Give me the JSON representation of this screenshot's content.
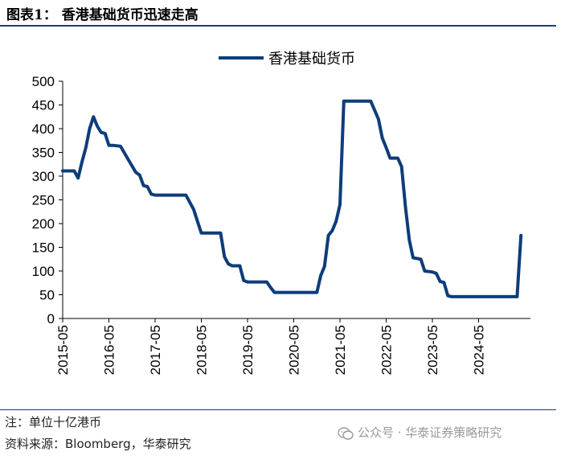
{
  "header": {
    "title": "图表1： 香港基础货币迅速走高"
  },
  "footer": {
    "note": "注：单位十亿港币",
    "source": "资料来源：Bloomberg，华泰研究",
    "watermark": "公众号 · 华泰证券策略研究"
  },
  "chart_data": {
    "type": "line",
    "title": "",
    "xlabel": "",
    "ylabel": "",
    "ylim": [
      0,
      500
    ],
    "yticks": [
      "0",
      "50",
      "100",
      "150",
      "200",
      "250",
      "300",
      "350",
      "400",
      "450",
      "500"
    ],
    "xticks": [
      "2015-05",
      "2016-05",
      "2017-05",
      "2018-05",
      "2019-05",
      "2020-05",
      "2021-05",
      "2022-05",
      "2023-05",
      "2024-05"
    ],
    "xlim": [
      "2015-05",
      "2024-12"
    ],
    "grid": false,
    "legend_position": "top",
    "series": [
      {
        "name": "香港基础货币",
        "color": "#0d3d7a",
        "points": [
          [
            "2015-05",
            311
          ],
          [
            "2015-08",
            311
          ],
          [
            "2015-09",
            296
          ],
          [
            "2015-10",
            330
          ],
          [
            "2015-11",
            360
          ],
          [
            "2015-12",
            400
          ],
          [
            "2016-01",
            425
          ],
          [
            "2016-02",
            405
          ],
          [
            "2016-03",
            392
          ],
          [
            "2016-04",
            390
          ],
          [
            "2016-05",
            365
          ],
          [
            "2016-06",
            365
          ],
          [
            "2016-08",
            363
          ],
          [
            "2016-10",
            335
          ],
          [
            "2016-12",
            308
          ],
          [
            "2017-01",
            302
          ],
          [
            "2017-02",
            280
          ],
          [
            "2017-03",
            278
          ],
          [
            "2017-04",
            262
          ],
          [
            "2017-05",
            260
          ],
          [
            "2017-08",
            260
          ],
          [
            "2017-11",
            260
          ],
          [
            "2018-01",
            260
          ],
          [
            "2018-03",
            230
          ],
          [
            "2018-04",
            205
          ],
          [
            "2018-05",
            180
          ],
          [
            "2018-07",
            180
          ],
          [
            "2018-09",
            180
          ],
          [
            "2018-10",
            180
          ],
          [
            "2018-11",
            130
          ],
          [
            "2018-12",
            115
          ],
          [
            "2019-01",
            111
          ],
          [
            "2019-03",
            111
          ],
          [
            "2019-04",
            80
          ],
          [
            "2019-05",
            77
          ],
          [
            "2019-08",
            77
          ],
          [
            "2019-10",
            77
          ],
          [
            "2019-11",
            65
          ],
          [
            "2019-12",
            55
          ],
          [
            "2020-03",
            55
          ],
          [
            "2020-06",
            55
          ],
          [
            "2020-09",
            55
          ],
          [
            "2020-11",
            55
          ],
          [
            "2020-12",
            90
          ],
          [
            "2021-01",
            110
          ],
          [
            "2021-02",
            175
          ],
          [
            "2021-03",
            185
          ],
          [
            "2021-04",
            205
          ],
          [
            "2021-05",
            240
          ],
          [
            "2021-06",
            458
          ],
          [
            "2021-09",
            458
          ],
          [
            "2021-12",
            458
          ],
          [
            "2022-01",
            458
          ],
          [
            "2022-03",
            420
          ],
          [
            "2022-04",
            380
          ],
          [
            "2022-05",
            360
          ],
          [
            "2022-06",
            338
          ],
          [
            "2022-08",
            338
          ],
          [
            "2022-09",
            320
          ],
          [
            "2022-10",
            235
          ],
          [
            "2022-11",
            165
          ],
          [
            "2022-12",
            128
          ],
          [
            "2023-02",
            125
          ],
          [
            "2023-03",
            100
          ],
          [
            "2023-05",
            98
          ],
          [
            "2023-06",
            95
          ],
          [
            "2023-07",
            78
          ],
          [
            "2023-08",
            76
          ],
          [
            "2023-09",
            48
          ],
          [
            "2023-10",
            46
          ],
          [
            "2024-01",
            46
          ],
          [
            "2024-04",
            46
          ],
          [
            "2024-07",
            46
          ],
          [
            "2024-10",
            46
          ],
          [
            "2024-11",
            46
          ],
          [
            "2024-12",
            46
          ],
          [
            "2025-01",
            46
          ],
          [
            "2025-02",
            46
          ],
          [
            "2025-03",
            46
          ],
          [
            "2025-04",
            175
          ]
        ]
      }
    ]
  }
}
